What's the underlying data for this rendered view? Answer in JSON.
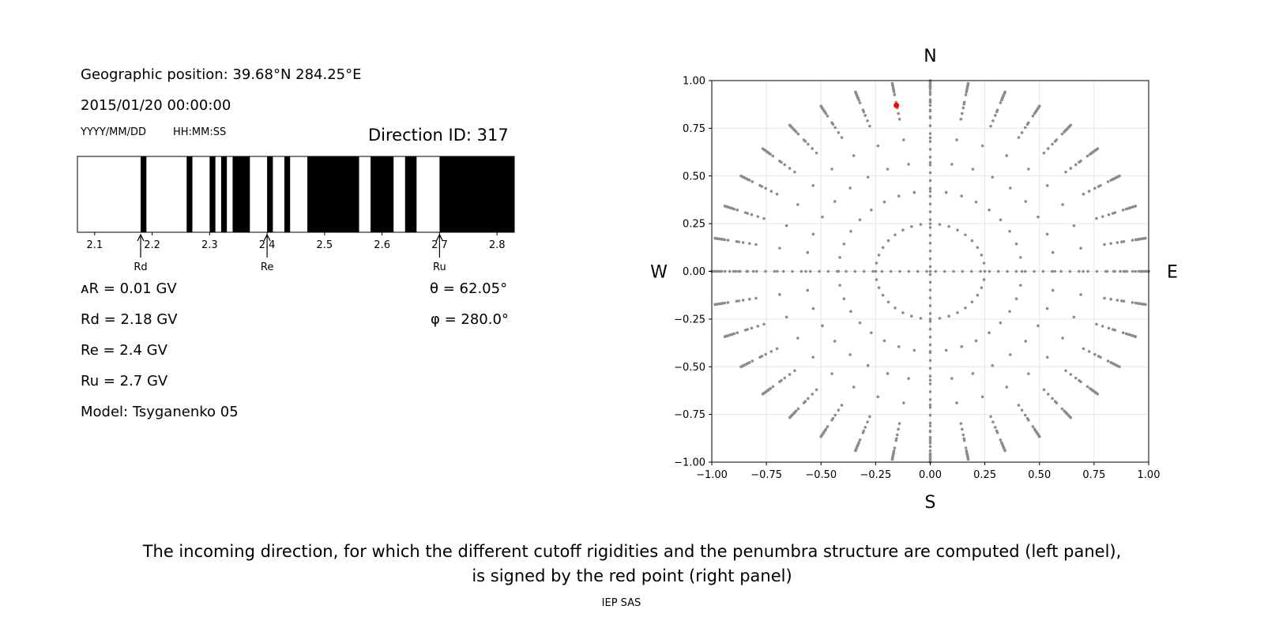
{
  "left_panel": {
    "geo_position": "Geographic position: 39.68°N 284.25°E",
    "datetime": "2015/01/20 00:00:00",
    "date_format": "YYYY/MM/DD",
    "time_format": "HH:MM:SS",
    "direction_id": "Direction ID: 317",
    "params": {
      "delta_r": "ᴀR = 0.01 GV",
      "rd": "Rd = 2.18 GV",
      "re": "Re = 2.4 GV",
      "ru": "Ru = 2.7 GV",
      "model": "Model: Tsyganenko 05",
      "theta": "θ = 62.05°",
      "phi": "φ = 280.0°"
    }
  },
  "chart_data": [
    {
      "type": "penumbra_bar",
      "xlim": [
        2.07,
        2.83
      ],
      "ticks": [
        2.1,
        2.2,
        2.3,
        2.4,
        2.5,
        2.6,
        2.7,
        2.8
      ],
      "tick_labels": [
        "2.1",
        "2.2",
        "2.3",
        "2.4",
        "2.5",
        "2.6",
        "2.7",
        "2.8"
      ],
      "black_bands": [
        [
          2.18,
          2.19
        ],
        [
          2.26,
          2.27
        ],
        [
          2.3,
          2.31
        ],
        [
          2.32,
          2.33
        ],
        [
          2.34,
          2.37
        ],
        [
          2.4,
          2.41
        ],
        [
          2.43,
          2.44
        ],
        [
          2.47,
          2.56
        ],
        [
          2.58,
          2.62
        ],
        [
          2.64,
          2.66
        ],
        [
          2.7,
          2.83
        ]
      ],
      "markers": [
        {
          "label": "Rd",
          "value": 2.18
        },
        {
          "label": "Re",
          "value": 2.4
        },
        {
          "label": "Ru",
          "value": 2.7
        }
      ],
      "colors": {
        "band": "#000000",
        "background": "#ffffff"
      }
    },
    {
      "type": "scatter",
      "xlim": [
        -1.0,
        1.0
      ],
      "ylim": [
        -1.0,
        1.0
      ],
      "ticks": [
        -1.0,
        -0.75,
        -0.5,
        -0.25,
        0.0,
        0.25,
        0.5,
        0.75,
        1.0
      ],
      "x_tick_labels": [
        "−1.00",
        "−0.75",
        "−0.50",
        "−0.25",
        "0.00",
        "0.25",
        "0.50",
        "0.75",
        "1.00"
      ],
      "y_tick_labels": [
        "−1.00",
        "−0.75",
        "−0.50",
        "−0.25",
        "0.00",
        "0.25",
        "0.50",
        "0.75",
        "1.00"
      ],
      "grid": true,
      "direction_labels": {
        "top": "N",
        "bottom": "S",
        "left": "W",
        "right": "E"
      },
      "grid_dots": {
        "description": "polar direction grid: zenith at center, rings every 10° zenith (r = sin θ), azimuth spokes every 10°",
        "center": [
          0.0,
          0.0
        ],
        "ring_zenith_deg": [
          15,
          25,
          35,
          45,
          55,
          65,
          75,
          85,
          90
        ],
        "inner_ring_radius": 0.25,
        "spoke_step_deg": 10,
        "color": "#8c8c8c"
      },
      "highlight": {
        "x": -0.155,
        "y": 0.87,
        "color": "#ff0000"
      }
    }
  ],
  "footer": {
    "caption_line1": "The incoming direction, for which the different cutoff rigidities and the penumbra structure are computed (left panel),",
    "caption_line2": "is signed by the red point (right panel)",
    "credit": "IEP SAS"
  }
}
